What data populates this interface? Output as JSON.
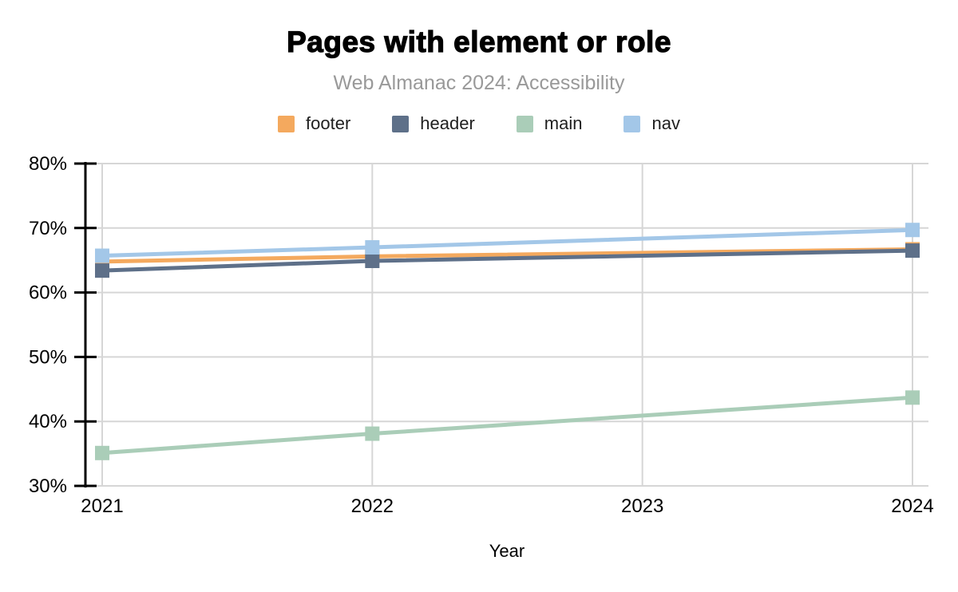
{
  "title": "Pages with element or role",
  "subtitle": "Web Almanac 2024: Accessibility",
  "chart_data": {
    "type": "line",
    "title": "Pages with element or role",
    "subtitle": "Web Almanac 2024: Accessibility",
    "x": [
      2021,
      2022,
      2024
    ],
    "x_ticks": [
      2021,
      2022,
      2023,
      2024
    ],
    "xlabel": "Year",
    "ylabel": "",
    "xlim": [
      2021,
      2024
    ],
    "ylim": [
      30,
      80
    ],
    "y_ticks": [
      30,
      40,
      50,
      60,
      70,
      80
    ],
    "y_tick_labels": [
      "30%",
      "40%",
      "50%",
      "60%",
      "70%",
      "80%"
    ],
    "grid": true,
    "legend_position": "top",
    "marker": "square",
    "series": [
      {
        "name": "footer",
        "color": "#f4a95e",
        "values": [
          64.8,
          65.6,
          66.7
        ]
      },
      {
        "name": "header",
        "color": "#5e7089",
        "values": [
          63.4,
          64.9,
          66.5
        ]
      },
      {
        "name": "main",
        "color": "#aacdb8",
        "values": [
          35.1,
          38.1,
          43.7
        ]
      },
      {
        "name": "nav",
        "color": "#a3c7e8",
        "values": [
          65.7,
          67.0,
          69.7
        ]
      }
    ]
  },
  "colors": {
    "grid": "#d6d6d6",
    "axis": "#000000",
    "tick_label": "#000000",
    "subtitle": "#999999",
    "legend_text": "#1f1f1f",
    "background": "#ffffff"
  }
}
